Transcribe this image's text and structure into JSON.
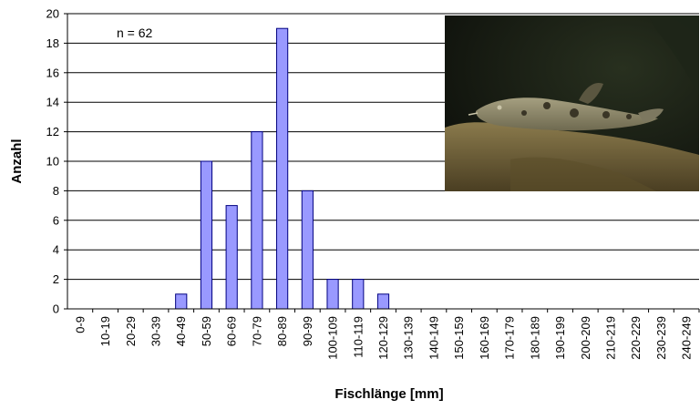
{
  "chart_data": {
    "type": "bar",
    "categories": [
      "0-9",
      "10-19",
      "20-29",
      "30-39",
      "40-49",
      "50-59",
      "60-69",
      "70-79",
      "80-89",
      "90-99",
      "100-109",
      "110-119",
      "120-129",
      "130-139",
      "140-149",
      "150-159",
      "160-169",
      "170-179",
      "180-189",
      "190-199",
      "200-209",
      "210-219",
      "220-229",
      "230-239",
      "240-249"
    ],
    "values": [
      0,
      0,
      0,
      0,
      1,
      10,
      7,
      12,
      19,
      8,
      2,
      2,
      1,
      0,
      0,
      0,
      0,
      0,
      0,
      0,
      0,
      0,
      0,
      0,
      0
    ],
    "xlabel": "Fischlänge [mm]",
    "ylabel": "Anzahl",
    "ylim": [
      0,
      20
    ],
    "yticks": [
      0,
      2,
      4,
      6,
      8,
      10,
      12,
      14,
      16,
      18,
      20
    ],
    "annotation": "n = 62",
    "grid": true,
    "bar_color": "#9999ff",
    "bar_edge_color": "#000080",
    "photo_colors": {
      "water": "#141812",
      "rock": "#6e5e3a",
      "fish": "#8a8468"
    }
  }
}
